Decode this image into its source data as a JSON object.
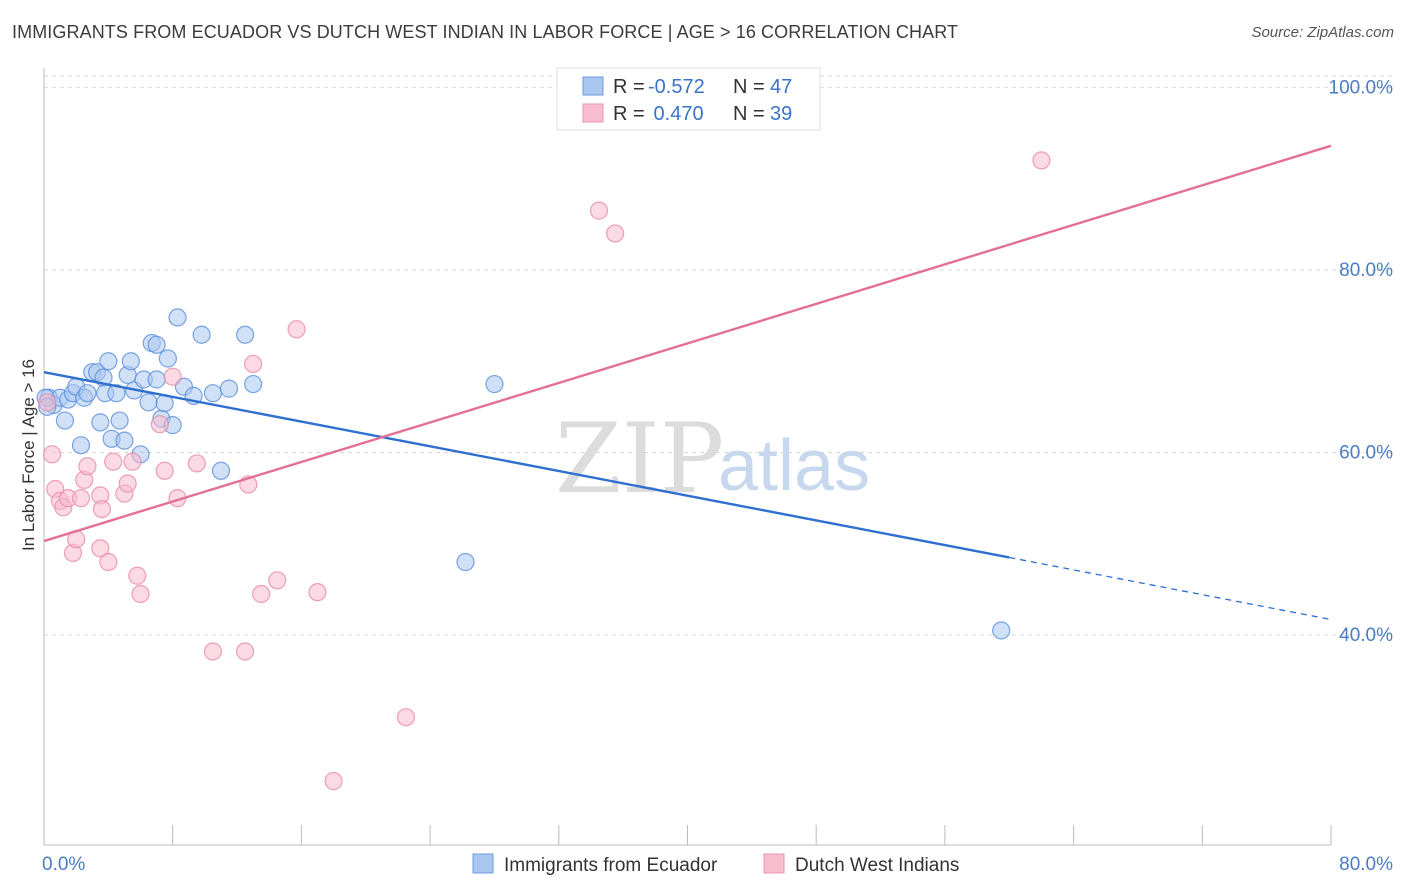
{
  "title": "IMMIGRANTS FROM ECUADOR VS DUTCH WEST INDIAN IN LABOR FORCE | AGE > 16 CORRELATION CHART",
  "source": "Source: ZipAtlas.com",
  "watermark": {
    "zip": "ZIP",
    "atlas": "atlas"
  },
  "legend": {
    "r_label": "R =",
    "n_label": "N =",
    "rows": [
      {
        "r": "-0.572",
        "n": "47",
        "color": "#aac7f0",
        "stroke": "#6f9be0"
      },
      {
        "r": " 0.470",
        "n": "39",
        "color": "#f7bccd",
        "stroke": "#e896ae"
      }
    ]
  },
  "bottom_legend": [
    {
      "label": "Immigrants from Ecuador",
      "color": "#aac7f0",
      "stroke": "#6f9be0"
    },
    {
      "label": "Dutch West Indians",
      "color": "#f7bccd",
      "stroke": "#e896ae"
    }
  ],
  "chart_data": {
    "type": "scatter",
    "xlabel": "",
    "ylabel": "In Labor Force | Age > 16",
    "xlim": [
      0,
      80
    ],
    "ylim": [
      17,
      103
    ],
    "x_tick_labels": [
      "0.0%",
      "80.0%"
    ],
    "y_ticks": [
      40,
      60,
      80,
      100
    ],
    "y_tick_labels": [
      "40.0%",
      "60.0%",
      "80.0%",
      "100.0%"
    ],
    "grid": true,
    "series": [
      {
        "name": "Immigrants from Ecuador",
        "color": "#5b8fdc",
        "fill": "#aac7f0",
        "points": [
          [
            0.3,
            66.0
          ],
          [
            0.6,
            65.2
          ],
          [
            1.0,
            66.0
          ],
          [
            1.3,
            63.5
          ],
          [
            1.5,
            65.8
          ],
          [
            1.8,
            66.5
          ],
          [
            2.0,
            67.2
          ],
          [
            2.3,
            60.8
          ],
          [
            2.5,
            66.0
          ],
          [
            2.7,
            66.5
          ],
          [
            3.0,
            68.8
          ],
          [
            3.3,
            68.8
          ],
          [
            3.5,
            63.3
          ],
          [
            3.7,
            68.2
          ],
          [
            3.8,
            66.5
          ],
          [
            4.0,
            70.0
          ],
          [
            4.2,
            61.5
          ],
          [
            4.5,
            66.5
          ],
          [
            4.7,
            63.5
          ],
          [
            5.0,
            61.3
          ],
          [
            5.2,
            68.5
          ],
          [
            5.4,
            70.0
          ],
          [
            5.6,
            66.8
          ],
          [
            6.0,
            59.8
          ],
          [
            6.2,
            68.0
          ],
          [
            6.5,
            65.5
          ],
          [
            6.7,
            72.0
          ],
          [
            7.0,
            71.8
          ],
          [
            7.3,
            63.7
          ],
          [
            7.5,
            65.4
          ],
          [
            7.7,
            70.3
          ],
          [
            8.0,
            63.0
          ],
          [
            8.3,
            74.8
          ],
          [
            8.7,
            67.2
          ],
          [
            9.3,
            66.2
          ],
          [
            9.8,
            72.9
          ],
          [
            10.5,
            66.5
          ],
          [
            11.0,
            58.0
          ],
          [
            11.5,
            67.0
          ],
          [
            12.5,
            72.9
          ],
          [
            13.0,
            67.5
          ],
          [
            26.2,
            48.0
          ],
          [
            28.0,
            67.5
          ],
          [
            59.5,
            40.5
          ],
          [
            0.1,
            66.0
          ],
          [
            0.2,
            65.0
          ],
          [
            7.0,
            68.0
          ]
        ]
      },
      {
        "name": "Dutch West Indians",
        "color": "#e88aa6",
        "fill": "#f7bccd",
        "points": [
          [
            0.2,
            65.5
          ],
          [
            0.5,
            59.8
          ],
          [
            0.7,
            56.0
          ],
          [
            1.0,
            54.7
          ],
          [
            1.2,
            54.0
          ],
          [
            1.5,
            55.0
          ],
          [
            1.8,
            49.0
          ],
          [
            2.0,
            50.5
          ],
          [
            2.3,
            55.0
          ],
          [
            2.5,
            57.0
          ],
          [
            2.7,
            58.5
          ],
          [
            3.5,
            49.5
          ],
          [
            3.5,
            55.3
          ],
          [
            3.6,
            53.8
          ],
          [
            4.0,
            48.0
          ],
          [
            4.3,
            59.0
          ],
          [
            5.0,
            55.5
          ],
          [
            5.2,
            56.6
          ],
          [
            5.5,
            59.0
          ],
          [
            5.8,
            46.5
          ],
          [
            6.0,
            44.5
          ],
          [
            7.2,
            63.1
          ],
          [
            7.5,
            58.0
          ],
          [
            8.0,
            68.3
          ],
          [
            8.3,
            55.0
          ],
          [
            9.5,
            58.8
          ],
          [
            10.5,
            38.2
          ],
          [
            12.5,
            38.2
          ],
          [
            12.7,
            56.5
          ],
          [
            13.0,
            69.7
          ],
          [
            13.5,
            44.5
          ],
          [
            14.5,
            46.0
          ],
          [
            15.7,
            73.5
          ],
          [
            17.0,
            44.7
          ],
          [
            18.0,
            24.0
          ],
          [
            22.5,
            31.0
          ],
          [
            34.5,
            86.5
          ],
          [
            35.5,
            84.0
          ],
          [
            62.0,
            92.0
          ]
        ]
      }
    ],
    "trend_lines": [
      {
        "series": "Immigrants from Ecuador",
        "x": [
          0,
          60
        ],
        "y": [
          68.8,
          48.5
        ],
        "dashed_to": [
          80,
          41.7
        ]
      },
      {
        "series": "Dutch West Indians",
        "x": [
          0,
          80
        ],
        "y": [
          50.3,
          93.6
        ]
      }
    ],
    "colors": {
      "blue_line": "#2f6fd0",
      "pink_line": "#e36f97",
      "tick_text": "#4a7cc4"
    }
  }
}
